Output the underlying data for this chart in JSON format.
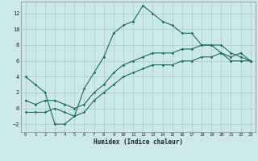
{
  "xlabel": "Humidex (Indice chaleur)",
  "bg_color": "#cce8e8",
  "grid_color": "#aacccc",
  "line_color": "#1a6b5a",
  "xlim": [
    -0.5,
    23.5
  ],
  "ylim": [
    -3.0,
    13.5
  ],
  "xticks": [
    0,
    1,
    2,
    3,
    4,
    5,
    6,
    7,
    8,
    9,
    10,
    11,
    12,
    13,
    14,
    15,
    16,
    17,
    18,
    19,
    20,
    21,
    22,
    23
  ],
  "yticks": [
    -2,
    0,
    2,
    4,
    6,
    8,
    10,
    12
  ],
  "line1_x": [
    0,
    1,
    2,
    3,
    4,
    5,
    6,
    7,
    8,
    9,
    10,
    11,
    12,
    13,
    14,
    15,
    16,
    17,
    18,
    19,
    20,
    21,
    22,
    23
  ],
  "line1_y": [
    4.0,
    3.0,
    2.0,
    -2.0,
    -2.0,
    -1.0,
    2.5,
    4.5,
    6.5,
    9.5,
    10.5,
    11.0,
    13.0,
    12.0,
    11.0,
    10.5,
    9.5,
    9.5,
    8.0,
    8.0,
    7.0,
    6.5,
    7.0,
    6.0
  ],
  "line2_x": [
    0,
    1,
    2,
    3,
    4,
    5,
    6,
    7,
    8,
    9,
    10,
    11,
    12,
    13,
    14,
    15,
    16,
    17,
    18,
    19,
    20,
    21,
    22,
    23
  ],
  "line2_y": [
    1.0,
    0.5,
    1.0,
    1.0,
    0.5,
    0.0,
    0.5,
    2.0,
    3.0,
    4.5,
    5.5,
    6.0,
    6.5,
    7.0,
    7.0,
    7.0,
    7.5,
    7.5,
    8.0,
    8.0,
    8.0,
    7.0,
    6.5,
    6.0
  ],
  "line3_x": [
    0,
    1,
    2,
    3,
    4,
    5,
    6,
    7,
    8,
    9,
    10,
    11,
    12,
    13,
    14,
    15,
    16,
    17,
    18,
    19,
    20,
    21,
    22,
    23
  ],
  "line3_y": [
    -0.5,
    -0.5,
    -0.5,
    0.0,
    -0.5,
    -1.0,
    -0.5,
    1.0,
    2.0,
    3.0,
    4.0,
    4.5,
    5.0,
    5.5,
    5.5,
    5.5,
    6.0,
    6.0,
    6.5,
    6.5,
    7.0,
    6.0,
    6.0,
    6.0
  ]
}
